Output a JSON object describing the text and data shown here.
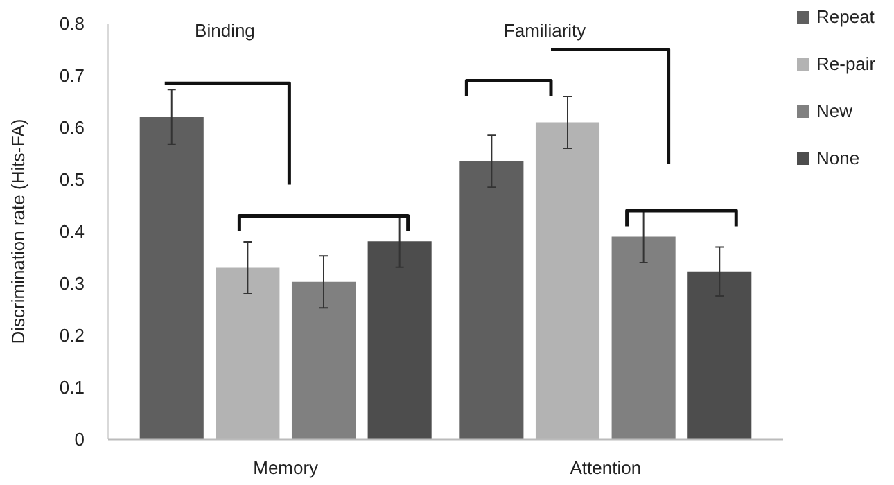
{
  "chart_data": {
    "type": "bar",
    "ylabel": "Discrimination rate (Hits-FA)",
    "categories": [
      "Memory",
      "Attention"
    ],
    "series": [
      {
        "name": "Repeat",
        "color": "#5f5f5f",
        "values": [
          0.62,
          0.535
        ],
        "errors": [
          0.053,
          0.05
        ]
      },
      {
        "name": "Re-pair",
        "color": "#b3b3b3",
        "values": [
          0.33,
          0.61
        ],
        "errors": [
          0.05,
          0.05
        ]
      },
      {
        "name": "New",
        "color": "#808080",
        "values": [
          0.303,
          0.39
        ],
        "errors": [
          0.05,
          0.05
        ]
      },
      {
        "name": "None",
        "color": "#4d4d4d",
        "values": [
          0.381,
          0.323
        ],
        "errors": [
          0.05,
          0.047
        ]
      }
    ],
    "ylim": [
      0,
      0.8
    ],
    "yticks": [
      0,
      0.1,
      0.2,
      0.3,
      0.4,
      0.5,
      0.6,
      0.7,
      0.8
    ],
    "grid": false,
    "legend": "top right",
    "annotations": [
      "Binding",
      "Familiarity"
    ]
  }
}
